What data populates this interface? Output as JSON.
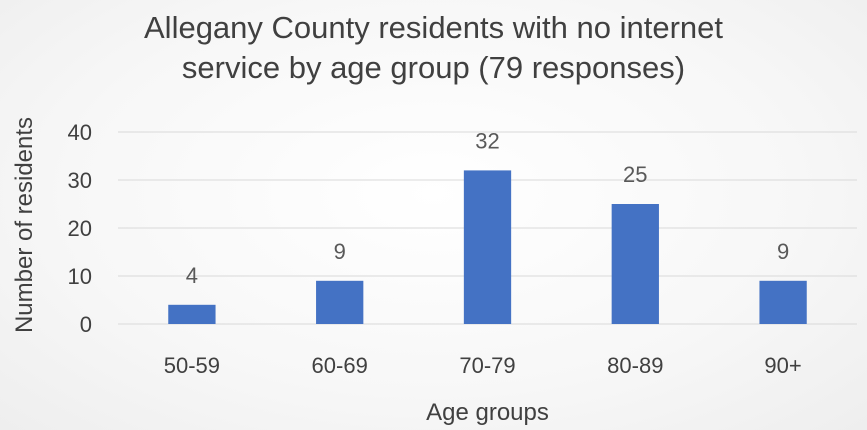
{
  "chart_data": {
    "type": "bar",
    "title_lines": [
      "Allegany County residents with no internet",
      "service by age group (79 responses)"
    ],
    "categories": [
      "50-59",
      "60-69",
      "70-79",
      "80-89",
      "90+"
    ],
    "values": [
      4,
      9,
      32,
      25,
      9
    ],
    "data_labels": [
      "4",
      "9",
      "32",
      "25",
      "9"
    ],
    "xlabel": "Age groups",
    "ylabel": "Number of residents",
    "ylim": [
      0,
      40
    ],
    "yticks": [
      "0",
      "10",
      "20",
      "30",
      "40"
    ],
    "grid": true,
    "legend": "none",
    "bar_color": "#4472C4",
    "grid_color": "#D9D9D9"
  }
}
